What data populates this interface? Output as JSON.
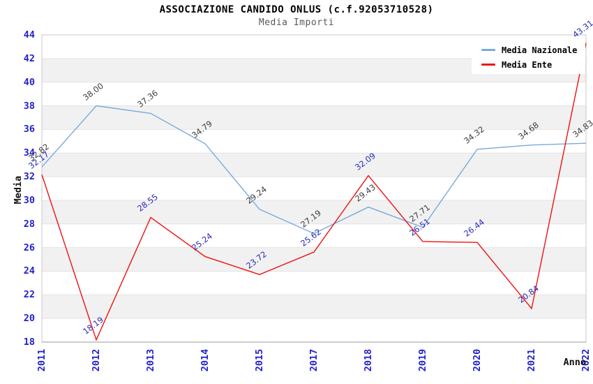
{
  "chart_data": {
    "type": "line",
    "title": "ASSOCIAZIONE CANDIDO ONLUS (c.f.92053710528)",
    "subtitle": "Media Importi",
    "xlabel": "Anno",
    "ylabel": "Media",
    "categories": [
      "2011",
      "2012",
      "2013",
      "2014",
      "2015",
      "2017",
      "2018",
      "2019",
      "2020",
      "2021",
      "2022"
    ],
    "series": [
      {
        "name": "Media Nazionale",
        "color": "#78aadc",
        "label_color": "#3d3d3d",
        "values": [
          32.82,
          38.0,
          37.36,
          34.79,
          29.24,
          27.19,
          29.43,
          27.71,
          34.32,
          34.68,
          34.83
        ]
      },
      {
        "name": "Media Ente",
        "color": "#ee1111",
        "label_color": "#2a2ab8",
        "values": [
          32.17,
          18.19,
          28.55,
          25.24,
          23.72,
          25.62,
          32.09,
          26.51,
          26.44,
          20.84,
          43.31
        ]
      }
    ],
    "ylim": [
      18,
      44
    ],
    "yticks": [
      18,
      20,
      22,
      24,
      26,
      28,
      30,
      32,
      34,
      36,
      38,
      40,
      42,
      44
    ],
    "value_label_decimals": 2,
    "grid": "horizontal-bands",
    "legend_position": "top-right",
    "colors": {
      "tick_label": "#2222cc",
      "band_fill": "#f1f1f1",
      "grid_line": "#e3e3e3",
      "plot_border": "#c8c8c8",
      "bottom_axis": "#9a9a9a"
    }
  }
}
